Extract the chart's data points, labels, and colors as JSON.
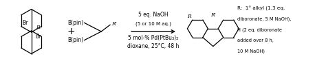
{
  "background_color": "#ffffff",
  "conditions_line1": "5 eq. NaOH",
  "conditions_line2": "(5 or 10 M aq.)",
  "conditions_line3": "5 mol-% Pd(PtBu₃)₂",
  "conditions_line4": "dioxane, 25°C, 48 h",
  "note_line1": "R:  1° alkyl (1.3 eq.",
  "note_line2": "diboronate, 5 M NaOH),",
  "note_line3": "H (2 eq. diboronate",
  "note_line4": "added over 8 h,",
  "note_line5": "10 M NaOH)",
  "fig_width": 4.74,
  "fig_height": 0.92,
  "dpi": 100
}
